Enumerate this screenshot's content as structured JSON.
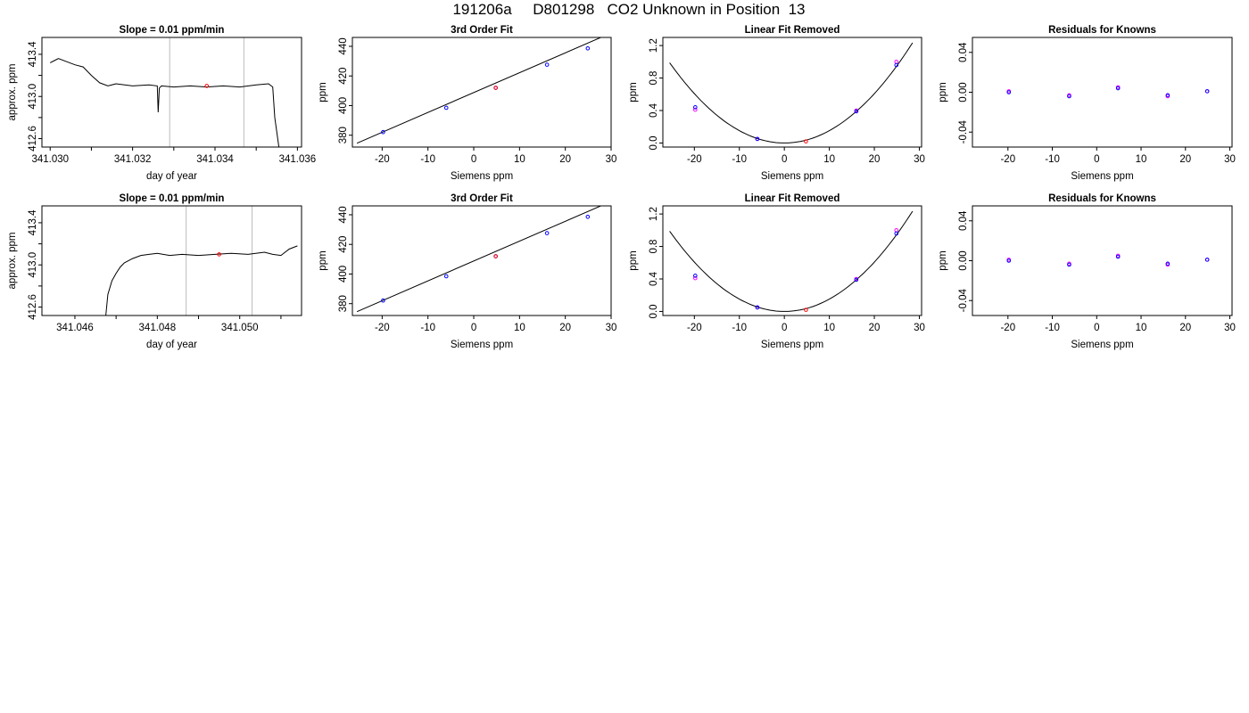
{
  "title": "191206a     D801298   CO2 Unknown in Position  13",
  "colors": {
    "known": "#0000ff",
    "fitted": "#ff00ff",
    "unknown": "#ff0000",
    "line": "#000000",
    "vline": "#bbbbbb"
  },
  "chart_data": [
    {
      "type": "line",
      "row": 0,
      "col": 0,
      "title": "Slope =  0.01  ppm/min",
      "xlabel": "day of year",
      "ylabel": "approx. ppm",
      "xlim": [
        341.0298,
        341.0361
      ],
      "ylim": [
        412.52,
        413.56
      ],
      "xticks": [
        "341.030",
        "341.032",
        "341.034",
        "341.036"
      ],
      "xtick_values": [
        341.03,
        341.031,
        341.032,
        341.033,
        341.034,
        341.035,
        341.036
      ],
      "xtick_labels_at": [
        341.03,
        341.032,
        341.034,
        341.036
      ],
      "yticks": [
        "412.6",
        "413.0",
        "413.4"
      ],
      "ytick_values": [
        412.6,
        412.8,
        413.0,
        413.2,
        413.4
      ],
      "ytick_labels_at": [
        412.6,
        413.0,
        413.4
      ],
      "vlines": [
        341.0329,
        341.0347
      ],
      "unknown_point": {
        "x": 341.0338,
        "y": 413.1
      },
      "trace": {
        "x": [
          341.03,
          341.0301,
          341.0302,
          341.0304,
          341.0306,
          341.0308,
          341.031,
          341.0312,
          341.0314,
          341.0316,
          341.032,
          341.0324,
          341.0326,
          341.03262,
          341.03265,
          341.0327,
          341.033,
          341.0334,
          341.0338,
          341.0342,
          341.0346,
          341.035,
          341.0353,
          341.0354,
          341.03545,
          341.03555
        ],
        "y": [
          413.32,
          413.34,
          413.36,
          413.33,
          413.3,
          413.28,
          413.2,
          413.13,
          413.1,
          413.12,
          413.1,
          413.11,
          413.1,
          412.85,
          413.08,
          413.1,
          413.09,
          413.1,
          413.09,
          413.1,
          413.09,
          413.11,
          413.12,
          413.09,
          412.8,
          412.52
        ]
      }
    },
    {
      "type": "scatter",
      "row": 0,
      "col": 1,
      "title": "3rd Order Fit",
      "xlabel": "Siemens ppm",
      "ylabel": "ppm",
      "xlim": [
        -26.5,
        30
      ],
      "ylim": [
        372,
        446
      ],
      "xticks": [
        "-20",
        "-10",
        "0",
        "10",
        "20",
        "30"
      ],
      "xtick_values": [
        -20,
        -10,
        0,
        10,
        20,
        30
      ],
      "yticks": [
        "380",
        "400",
        "420",
        "440"
      ],
      "ytick_values": [
        380,
        400,
        420,
        440
      ],
      "fit_line": {
        "x": [
          -25.5,
          28.5
        ],
        "y": [
          374.6,
          447
        ]
      },
      "known_points": {
        "x": [
          -19.8,
          -6.0,
          4.8,
          16.0,
          24.9
        ],
        "y": [
          382.1,
          398.5,
          412.0,
          427.6,
          438.6
        ]
      },
      "unknown_point": {
        "x": 4.8,
        "y": 412.0
      }
    },
    {
      "type": "scatter",
      "row": 0,
      "col": 2,
      "title": "Linear Fit Removed",
      "xlabel": "Siemens ppm",
      "ylabel": "ppm",
      "xlim": [
        -27,
        30.5
      ],
      "ylim": [
        -0.05,
        1.3
      ],
      "xticks": [
        "-20",
        "-10",
        "0",
        "10",
        "20",
        "30"
      ],
      "xtick_values": [
        -20,
        -10,
        0,
        10,
        20,
        30
      ],
      "yticks": [
        "0.0",
        "0.4",
        "0.8",
        "1.2"
      ],
      "ytick_values": [
        0.0,
        0.4,
        0.8,
        1.2
      ],
      "curve": {
        "quad_coef": 0.00152,
        "x_from": -25.5,
        "x_to": 28.5
      },
      "known_points": {
        "x": [
          -19.8,
          -6.0,
          16.0,
          24.9
        ],
        "y": [
          0.44,
          0.05,
          0.39,
          0.96
        ]
      },
      "fitted_points": {
        "x": [
          -19.8,
          -6.0,
          16.0,
          24.9
        ],
        "y": [
          0.41,
          0.05,
          0.4,
          1.0
        ]
      },
      "unknown_point": {
        "x": 4.8,
        "y": 0.02
      }
    },
    {
      "type": "scatter",
      "row": 0,
      "col": 3,
      "title": "Residuals for Knowns",
      "xlabel": "Siemens ppm",
      "ylabel": "ppm",
      "xlim": [
        -28,
        30.5
      ],
      "ylim": [
        -0.055,
        0.055
      ],
      "xticks": [
        "-20",
        "-10",
        "0",
        "10",
        "20",
        "30"
      ],
      "xtick_values": [
        -20,
        -10,
        0,
        10,
        20,
        30
      ],
      "yticks": [
        "-0.04",
        "0.00",
        "0.04"
      ],
      "ytick_values": [
        -0.04,
        0.0,
        0.04
      ],
      "known_points": {
        "x": [
          -19.8,
          -6.2,
          4.8,
          16.0,
          24.9
        ],
        "y": [
          0.0,
          -0.004,
          0.004,
          -0.003,
          0.001
        ]
      },
      "fitted_points": {
        "x": [
          -19.8,
          -6.2,
          4.8,
          16.0,
          24.9
        ],
        "y": [
          0.001,
          -0.003,
          0.005,
          -0.004,
          0.001
        ]
      }
    },
    {
      "type": "line",
      "row": 1,
      "col": 0,
      "title": "Slope =  0.01  ppm/min",
      "xlabel": "day of year",
      "ylabel": "approx. ppm",
      "xlim": [
        341.0452,
        341.0515
      ],
      "ylim": [
        412.52,
        413.56
      ],
      "xticks": [
        "341.046",
        "341.048",
        "341.050"
      ],
      "xtick_values": [
        341.046,
        341.047,
        341.048,
        341.049,
        341.05,
        341.051
      ],
      "xtick_labels_at": [
        341.046,
        341.048,
        341.05
      ],
      "yticks": [
        "412.6",
        "413.0",
        "413.4"
      ],
      "ytick_values": [
        412.6,
        412.8,
        413.0,
        413.2,
        413.4
      ],
      "ytick_labels_at": [
        412.6,
        413.0,
        413.4
      ],
      "vlines": [
        341.0487,
        341.0503
      ],
      "unknown_point": {
        "x": 341.0495,
        "y": 413.1
      },
      "trace": {
        "x": [
          341.04675,
          341.0468,
          341.0469,
          341.047,
          341.0471,
          341.0472,
          341.0474,
          341.0476,
          341.0478,
          341.048,
          341.0483,
          341.0486,
          341.049,
          341.0494,
          341.0498,
          341.0502,
          341.0506,
          341.0508,
          341.051,
          341.0512,
          341.0514
        ],
        "y": [
          412.52,
          412.72,
          412.85,
          412.92,
          412.98,
          413.02,
          413.06,
          413.09,
          413.1,
          413.11,
          413.09,
          413.1,
          413.09,
          413.1,
          413.11,
          413.1,
          413.12,
          413.1,
          413.09,
          413.15,
          413.18
        ]
      }
    },
    {
      "type": "scatter",
      "row": 1,
      "col": 1,
      "title": "3rd Order Fit",
      "xlabel": "Siemens ppm",
      "ylabel": "ppm",
      "xlim": [
        -26.5,
        30
      ],
      "ylim": [
        372,
        446
      ],
      "xticks": [
        "-20",
        "-10",
        "0",
        "10",
        "20",
        "30"
      ],
      "xtick_values": [
        -20,
        -10,
        0,
        10,
        20,
        30
      ],
      "yticks": [
        "380",
        "400",
        "420",
        "440"
      ],
      "ytick_values": [
        380,
        400,
        420,
        440
      ],
      "fit_line": {
        "x": [
          -25.5,
          28.5
        ],
        "y": [
          374.6,
          447
        ]
      },
      "known_points": {
        "x": [
          -19.8,
          -6.0,
          4.8,
          16.0,
          24.9
        ],
        "y": [
          382.1,
          398.5,
          412.0,
          427.6,
          438.6
        ]
      },
      "unknown_point": {
        "x": 4.8,
        "y": 412.0
      }
    },
    {
      "type": "scatter",
      "row": 1,
      "col": 2,
      "title": "Linear Fit Removed",
      "xlabel": "Siemens ppm",
      "ylabel": "ppm",
      "xlim": [
        -27,
        30.5
      ],
      "ylim": [
        -0.05,
        1.3
      ],
      "xticks": [
        "-20",
        "-10",
        "0",
        "10",
        "20",
        "30"
      ],
      "xtick_values": [
        -20,
        -10,
        0,
        10,
        20,
        30
      ],
      "yticks": [
        "0.0",
        "0.4",
        "0.8",
        "1.2"
      ],
      "ytick_values": [
        0.0,
        0.4,
        0.8,
        1.2
      ],
      "curve": {
        "quad_coef": 0.00152,
        "x_from": -25.5,
        "x_to": 28.5
      },
      "known_points": {
        "x": [
          -19.8,
          -6.0,
          16.0,
          24.9
        ],
        "y": [
          0.44,
          0.05,
          0.39,
          0.96
        ]
      },
      "fitted_points": {
        "x": [
          -19.8,
          -6.0,
          16.0,
          24.9
        ],
        "y": [
          0.41,
          0.05,
          0.4,
          1.0
        ]
      },
      "unknown_point": {
        "x": 4.8,
        "y": 0.02
      }
    },
    {
      "type": "scatter",
      "row": 1,
      "col": 3,
      "title": "Residuals for Knowns",
      "xlabel": "Siemens ppm",
      "ylabel": "ppm",
      "xlim": [
        -28,
        30.5
      ],
      "ylim": [
        -0.055,
        0.055
      ],
      "xticks": [
        "-20",
        "-10",
        "0",
        "10",
        "20",
        "30"
      ],
      "xtick_values": [
        -20,
        -10,
        0,
        10,
        20,
        30
      ],
      "yticks": [
        "-0.04",
        "0.00",
        "0.04"
      ],
      "ytick_values": [
        -0.04,
        0.0,
        0.04
      ],
      "known_points": {
        "x": [
          -19.8,
          -6.2,
          4.8,
          16.0,
          24.9
        ],
        "y": [
          0.0,
          -0.004,
          0.004,
          -0.003,
          0.001
        ]
      },
      "fitted_points": {
        "x": [
          -19.8,
          -6.2,
          4.8,
          16.0,
          24.9
        ],
        "y": [
          0.001,
          -0.003,
          0.005,
          -0.004,
          0.001
        ]
      }
    }
  ]
}
